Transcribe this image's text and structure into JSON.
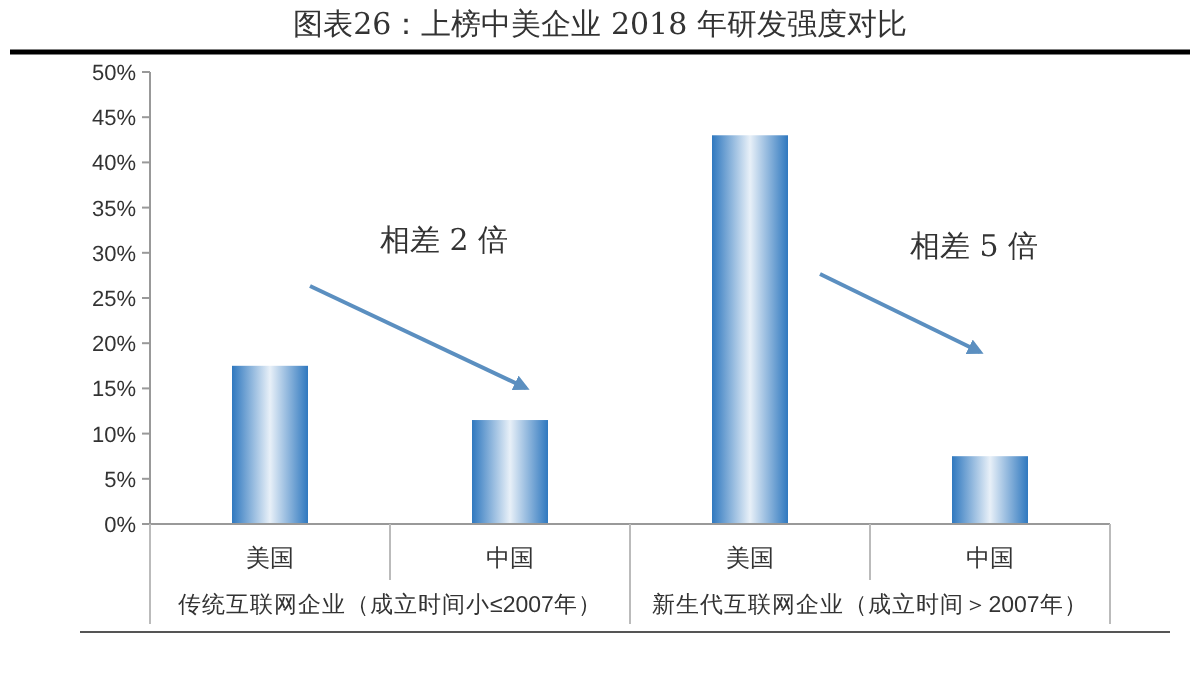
{
  "chart_data": {
    "type": "bar",
    "title": "图表26：上榜中美企业 2018 年研发强度对比",
    "categories": [
      "美国",
      "中国",
      "美国",
      "中国"
    ],
    "values": [
      17.5,
      11.5,
      43,
      7.5
    ],
    "color": "#2f78bf",
    "ylim": [
      0,
      50
    ],
    "yticks": [
      {
        "value": 0,
        "label": "0%"
      },
      {
        "value": 5,
        "label": "5%"
      },
      {
        "value": 10,
        "label": "10%"
      },
      {
        "value": 15,
        "label": "15%"
      },
      {
        "value": 20,
        "label": "20%"
      },
      {
        "value": 25,
        "label": "25%"
      },
      {
        "value": 30,
        "label": "30%"
      },
      {
        "value": 35,
        "label": "35%"
      },
      {
        "value": 40,
        "label": "40%"
      },
      {
        "value": 45,
        "label": "45%"
      },
      {
        "value": 50,
        "label": "50%"
      }
    ],
    "annotations": [
      "相差 2 倍",
      "相差 5 倍",
      "传统互联网企业（成立时间小≤2007年）",
      "新生代互联网企业（成立时间＞2007年）"
    ],
    "grid": false
  }
}
